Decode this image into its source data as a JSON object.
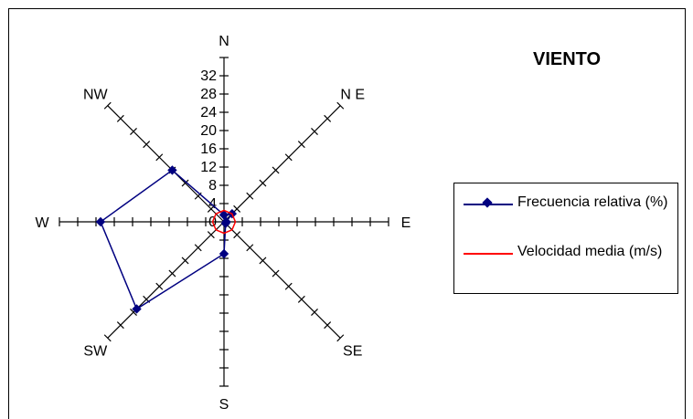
{
  "title": "VIENTO",
  "chart_data": {
    "type": "radar",
    "title": "VIENTO",
    "directions": [
      "N",
      "N E",
      "E",
      "SE",
      "S",
      "SW",
      "W",
      "NW"
    ],
    "radial_ticks": [
      0,
      4,
      8,
      12,
      16,
      20,
      24,
      28,
      32
    ],
    "rmax": 36,
    "legend_position": "right",
    "series": [
      {
        "name": "Frecuencia relativa (%)",
        "color": "#000080",
        "marker": "diamond",
        "values": [
          1.5,
          2.5,
          0.5,
          0.5,
          7,
          27,
          27,
          16
        ]
      },
      {
        "name": "Velocidad media (m/s)",
        "color": "#ff0000",
        "marker": "none",
        "values": [
          2.5,
          2.5,
          2.5,
          2.5,
          2.5,
          2.5,
          2.5,
          2.5
        ]
      }
    ]
  }
}
